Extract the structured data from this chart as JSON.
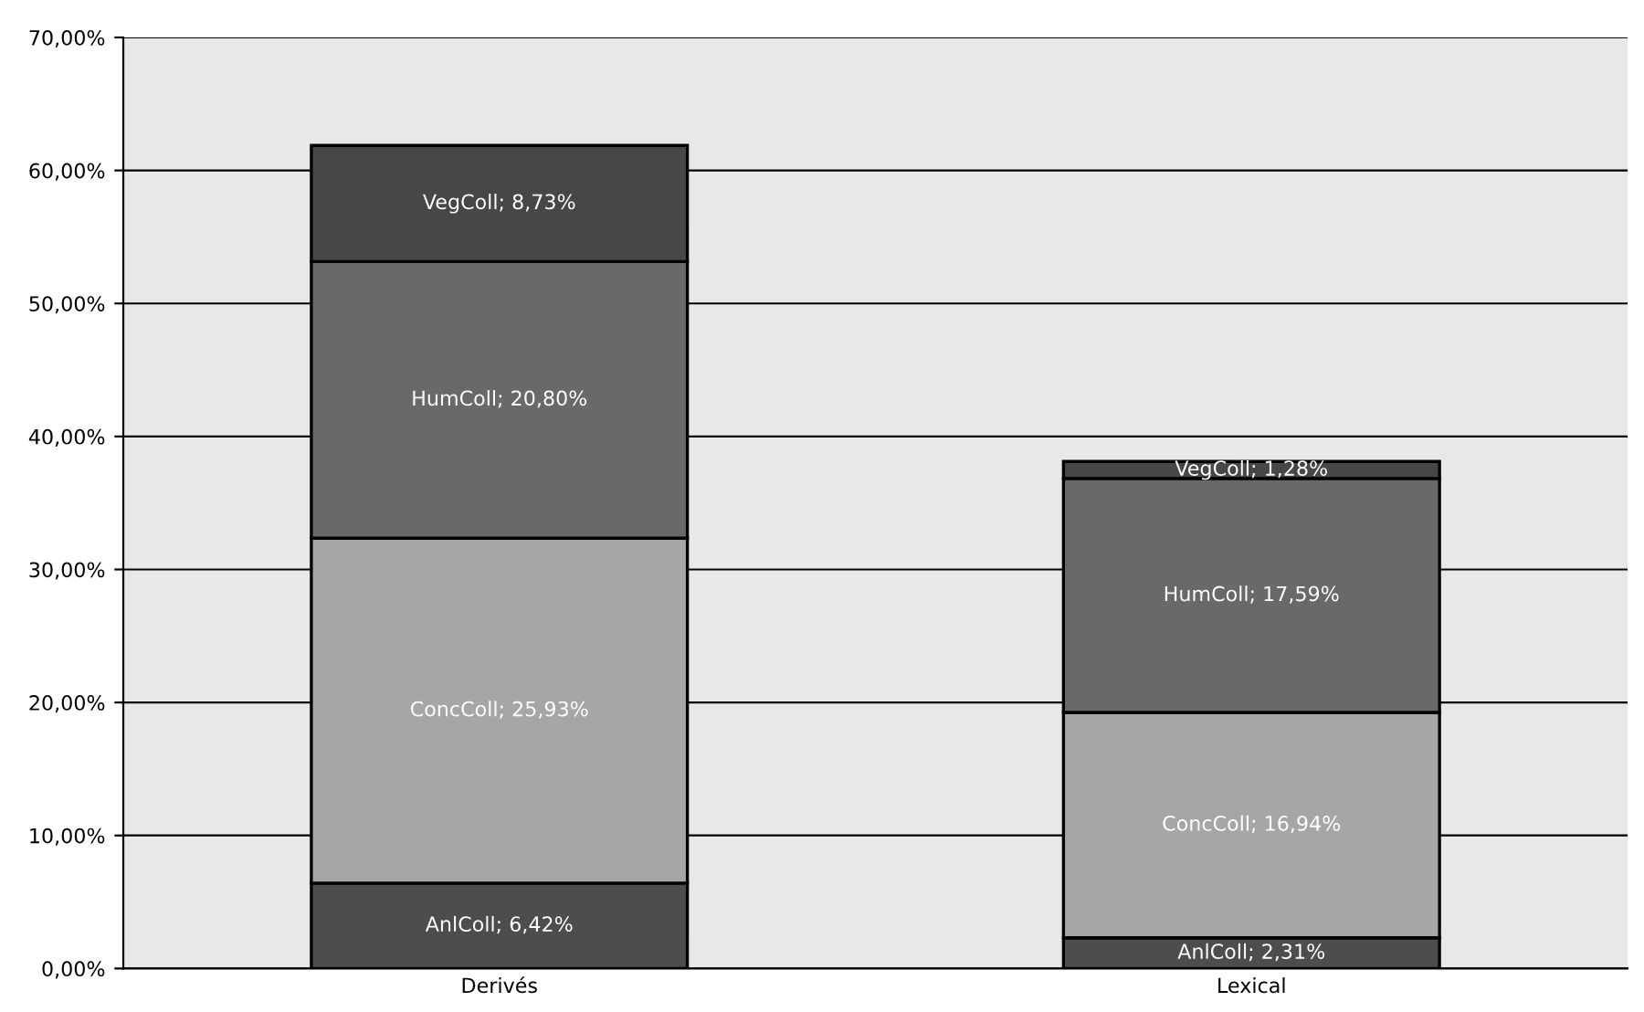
{
  "chart_data": {
    "type": "bar",
    "stacked": true,
    "categories": [
      "Derivés",
      "Lexical"
    ],
    "series": [
      {
        "color": "#4d4d4d",
        "values": [
          6.42,
          2.31
        ],
        "value_labels": [
          "AnlColl; 6,42%",
          "AnlColl; 2,31%"
        ]
      },
      {
        "color": "#a6a6a6",
        "values": [
          25.93,
          16.94
        ],
        "value_labels": [
          "ConcColl; 25,93%",
          "ConcColl; 16,94%"
        ]
      },
      {
        "color": "#696969",
        "values": [
          20.8,
          17.59
        ],
        "value_labels": [
          "HumColl; 20,80%",
          "HumColl; 17,59%"
        ]
      },
      {
        "color": "#474747",
        "values": [
          8.73,
          1.28
        ],
        "value_labels": [
          "VegColl; 8,73%",
          "VegColl; 1,28%"
        ]
      }
    ],
    "ylim": [
      0,
      70
    ],
    "yticks": [
      {
        "value": 0,
        "label": "0,00%"
      },
      {
        "value": 10,
        "label": "10,00%"
      },
      {
        "value": 20,
        "label": "20,00%"
      },
      {
        "value": 30,
        "label": "30,00%"
      },
      {
        "value": 40,
        "label": "40,00%"
      },
      {
        "value": 50,
        "label": "50,00%"
      },
      {
        "value": 60,
        "label": "60,00%"
      },
      {
        "value": 70,
        "label": "70,00%"
      }
    ],
    "grid": "y",
    "legend": false
  }
}
